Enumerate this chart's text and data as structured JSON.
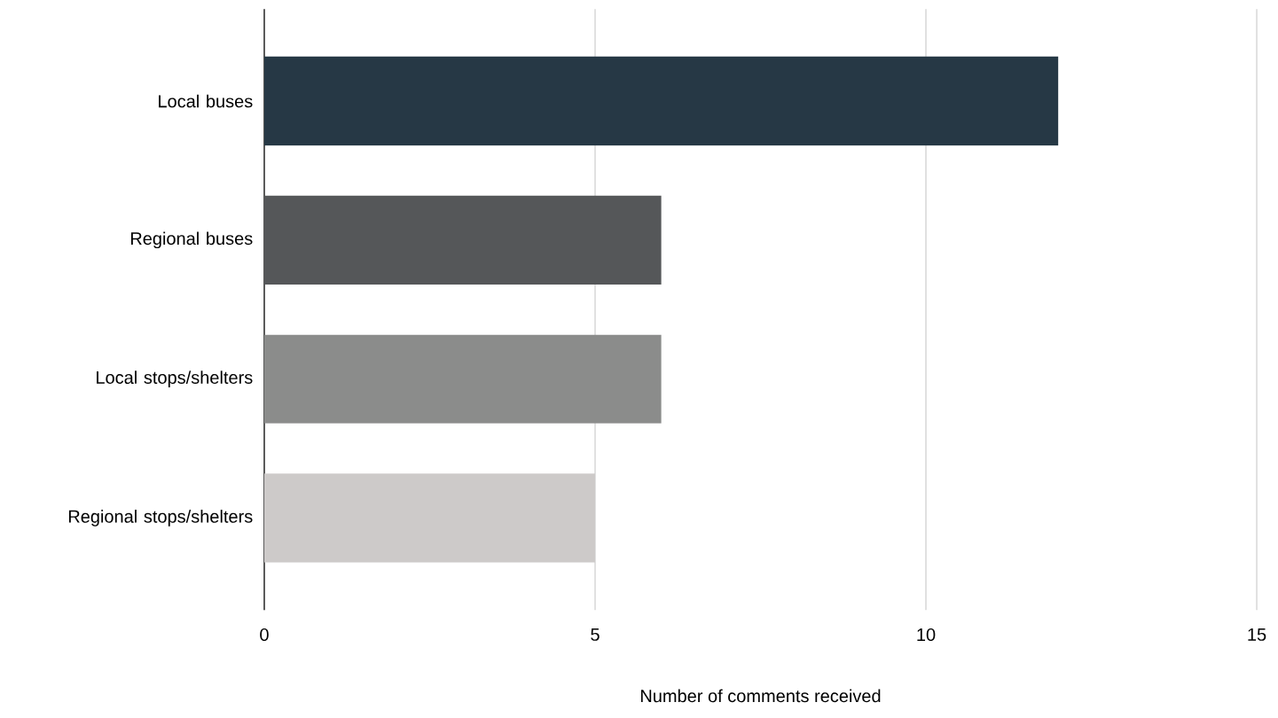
{
  "chart_data": {
    "type": "bar",
    "orientation": "horizontal",
    "categories": [
      "Local buses",
      "Regional buses",
      "Local stops/shelters",
      "Regional stops/shelters"
    ],
    "values": [
      12,
      6,
      6,
      5
    ],
    "colors": [
      "#263845",
      "#555759",
      "#8b8c8b",
      "#cdcac9"
    ],
    "xlim": [
      0,
      15
    ],
    "xticks": [
      0,
      5,
      10,
      15
    ],
    "grid": "x",
    "xlabel": "Number of comments received"
  }
}
